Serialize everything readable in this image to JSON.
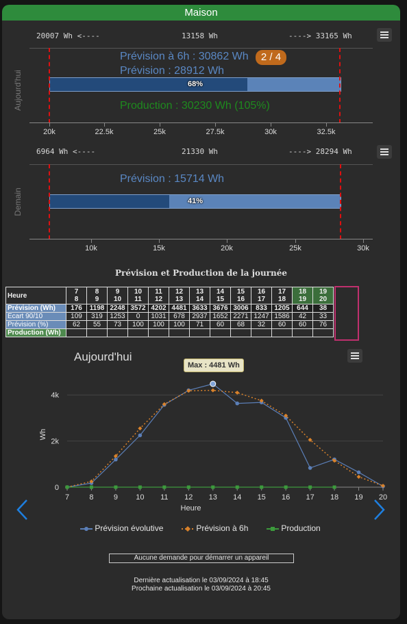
{
  "header": {
    "title": "Maison"
  },
  "today": {
    "side_label": "Aujourd'hui",
    "min_label": "20007 Wh <----",
    "mid_label": "13158 Wh",
    "max_label": "----> 33165 Wh",
    "forecast_6h": "Prévision à 6h : 30862 Wh",
    "badge": "2 / 4",
    "forecast": "Prévision : 28912 Wh",
    "gauge_fraction": 0.68,
    "gauge_pct": "68%",
    "production": "Production : 30230 Wh (105%)",
    "axis_ticks": [
      "20k",
      "22.5k",
      "25k",
      "27.5k",
      "30k",
      "32.5k"
    ]
  },
  "tomorrow": {
    "side_label": "Demain",
    "min_label": "6964 Wh <----",
    "mid_label": "21330 Wh",
    "max_label": "----> 28294 Wh",
    "forecast": "Prévision : 15714 Wh",
    "gauge_fraction": 0.41,
    "gauge_pct": "41%",
    "axis_ticks": [
      "10k",
      "15k",
      "20k",
      "25k",
      "30k"
    ]
  },
  "table": {
    "title": "Prévision et Production de la journée",
    "row_labels": [
      "Heure",
      "Prévision (Wh)",
      "Ecart 90/10",
      "Prévision (%)",
      "Production (Wh)"
    ],
    "hours_top": [
      "7",
      "8",
      "9",
      "10",
      "11",
      "12",
      "13",
      "14",
      "15",
      "16",
      "17",
      "18",
      "19"
    ],
    "hours_bottom": [
      "8",
      "9",
      "10",
      "11",
      "12",
      "13",
      "14",
      "15",
      "16",
      "17",
      "18",
      "19",
      "20"
    ],
    "prevision": [
      "176",
      "1198",
      "2248",
      "3572",
      "4202",
      "4481",
      "3633",
      "3676",
      "3006",
      "833",
      "1205",
      "644",
      "38"
    ],
    "ecart": [
      "109",
      "319",
      "1253",
      "0",
      "1031",
      "678",
      "2937",
      "1652",
      "2271",
      "1247",
      "1586",
      "42",
      "33"
    ],
    "pct": [
      "62",
      "55",
      "73",
      "100",
      "100",
      "100",
      "71",
      "60",
      "68",
      "32",
      "60",
      "60",
      "76"
    ],
    "production": [
      "",
      "",
      "",
      "",
      "",
      "",
      "",
      "",
      "",
      "",
      "",
      "",
      ""
    ]
  },
  "chart_data": {
    "type": "line",
    "title": "Aujourd'hui",
    "xlabel": "Heure",
    "ylabel": "Wh",
    "x": [
      7,
      8,
      9,
      10,
      11,
      12,
      13,
      14,
      15,
      16,
      17,
      18,
      19,
      20
    ],
    "y_ticks": [
      "0",
      "2k",
      "4k"
    ],
    "ylim": [
      0,
      4600
    ],
    "xlim": [
      7,
      20
    ],
    "series": [
      {
        "name": "Prévision évolutive",
        "color": "#5b7fb8",
        "style": "solid",
        "marker": "circle",
        "values": [
          0,
          176,
          1198,
          2248,
          3572,
          4202,
          4481,
          3633,
          3676,
          3006,
          833,
          1205,
          644,
          38
        ]
      },
      {
        "name": "Prévision à 6h",
        "color": "#d9822b",
        "style": "dotted",
        "marker": "diamond",
        "values": [
          0,
          250,
          1350,
          2550,
          3600,
          4180,
          4200,
          4100,
          3750,
          3100,
          2050,
          1150,
          450,
          60
        ]
      },
      {
        "name": "Production",
        "color": "#3c9a3c",
        "style": "solid",
        "marker": "square",
        "values": [
          0,
          0,
          0,
          0,
          0,
          0,
          0,
          0,
          0,
          0,
          0,
          0,
          null,
          null
        ]
      }
    ],
    "tooltip": "Max : 4481 Wh",
    "grid": true,
    "legend_position": "bottom"
  },
  "status": {
    "message": "Aucune demande pour démarrer un appareil",
    "last_update": "Dernière actualisation le 03/09/2024 à 18:45",
    "next_update": "Prochaine actualisation le 03/09/2024 à 20:45"
  }
}
